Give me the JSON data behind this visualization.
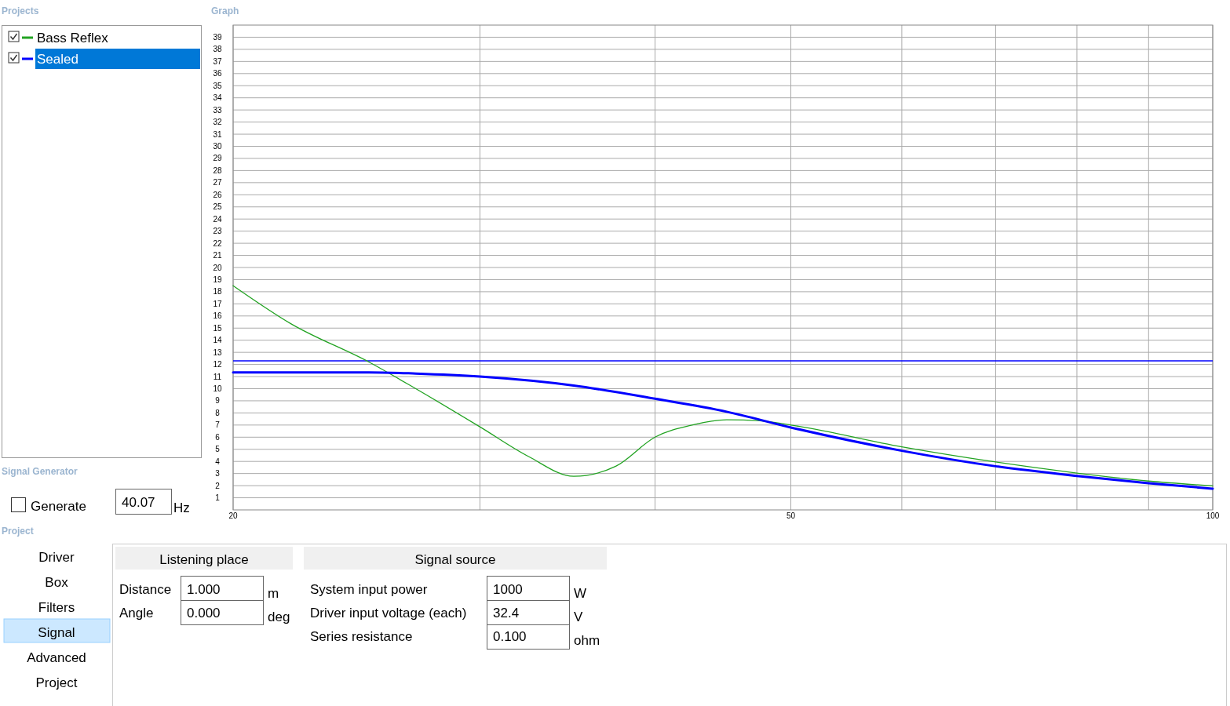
{
  "chart_data": {
    "type": "line",
    "log": "x",
    "grid": true,
    "legend": "left",
    "line_style": "solid",
    "xlim": [
      20,
      100
    ],
    "xticks": [
      {
        "value": 20,
        "label": "20"
      },
      {
        "value": 30,
        "label": null
      },
      {
        "value": 40,
        "label": null
      },
      {
        "value": 50,
        "label": "50"
      },
      {
        "value": 60,
        "label": null
      },
      {
        "value": 70,
        "label": null
      },
      {
        "value": 80,
        "label": null
      },
      {
        "value": 90,
        "label": null
      },
      {
        "value": 100,
        "label": "100"
      }
    ],
    "ylim": [
      0,
      40
    ],
    "yticks": [
      1,
      2,
      3,
      4,
      5,
      6,
      7,
      8,
      9,
      10,
      11,
      12,
      13,
      14,
      15,
      16,
      17,
      18,
      19,
      20,
      21,
      22,
      23,
      24,
      25,
      26,
      27,
      28,
      29,
      30,
      31,
      32,
      33,
      34,
      35,
      36,
      37,
      38,
      39
    ],
    "series": [
      {
        "name": "Bass Reflex",
        "color": "#22a322",
        "x": [
          20,
          22,
          25,
          27,
          30,
          32.5,
          35,
          37.5,
          40,
          42.5,
          45,
          47.5,
          50,
          60,
          70,
          80,
          90,
          100
        ],
        "values": [
          18.5,
          15.35,
          12.2,
          10.0,
          6.85,
          4.4,
          2.77,
          3.6,
          6.0,
          7.0,
          7.43,
          7.35,
          7.0,
          5.2,
          3.95,
          3.04,
          2.38,
          1.98
        ]
      },
      {
        "name": "Sealed",
        "color": "#0000ff",
        "x": [
          20,
          25,
          27,
          30,
          35,
          40,
          45,
          50,
          60,
          70,
          80,
          90,
          100
        ],
        "values": [
          11.35,
          11.35,
          11.25,
          11.0,
          10.26,
          9.17,
          8.1,
          6.8,
          4.88,
          3.6,
          2.8,
          2.2,
          1.75
        ]
      }
    ],
    "ref_lines": [
      {
        "axis": "y",
        "value": 12.3,
        "label": null,
        "color": "#0000ff"
      }
    ],
    "annotations": [
      "Projects",
      "Graph",
      "Signal Generator",
      "Generate",
      "40.07",
      "Hz",
      "Project",
      "Driver",
      "Box",
      "Filters",
      "Signal",
      "Advanced",
      "Project",
      "Listening place",
      "Signal source",
      "Distance",
      "1.000",
      "m",
      "Angle",
      "0.000",
      "deg",
      "System input power",
      "1000",
      "W",
      "Driver input voltage (each)",
      "32.4",
      "V",
      "Series resistance",
      "0.100",
      "ohm"
    ]
  }
}
